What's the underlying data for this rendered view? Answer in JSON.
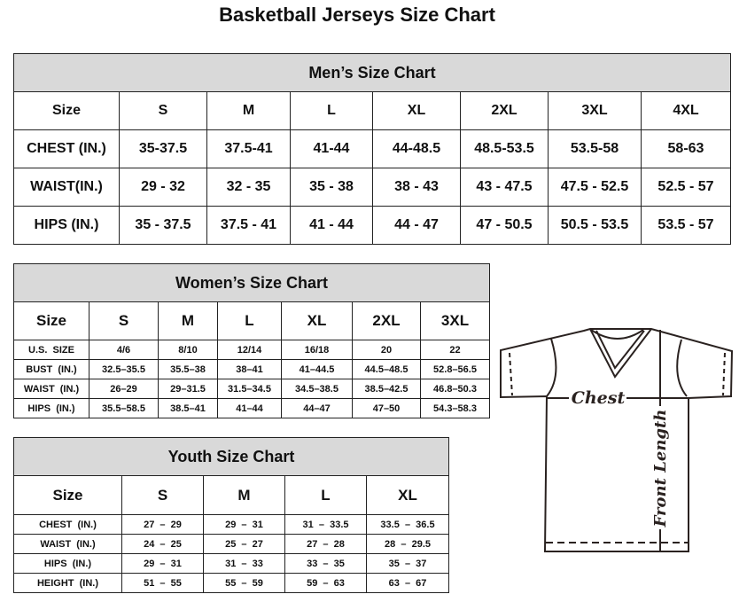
{
  "title": "Basketball Jerseys Size Chart",
  "men": {
    "heading": "Men’s Size Chart",
    "rows": [
      [
        "Size",
        "S",
        "M",
        "L",
        "XL",
        "2XL",
        "3XL",
        "4XL"
      ],
      [
        "CHEST (IN.)",
        "35-37.5",
        "37.5-41",
        "41-44",
        "44-48.5",
        "48.5-53.5",
        "53.5-58",
        "58-63"
      ],
      [
        "WAIST(IN.)",
        "29 - 32",
        "32 - 35",
        "35 - 38",
        "38 - 43",
        "43 - 47.5",
        "47.5 - 52.5",
        "52.5 - 57"
      ],
      [
        "HIPS (IN.)",
        "35 - 37.5",
        "37.5 - 41",
        "41 - 44",
        "44 - 47",
        "47 - 50.5",
        "50.5 - 53.5",
        "53.5 - 57"
      ]
    ]
  },
  "women": {
    "heading": "Women’s Size Chart",
    "rows": [
      [
        "Size",
        "S",
        "M",
        "L",
        "XL",
        "2XL",
        "3XL"
      ],
      [
        "U.S.  SIZE",
        "4/6",
        "8/10",
        "12/14",
        "16/18",
        "20",
        "22"
      ],
      [
        "BUST  (IN.)",
        "32.5–35.5",
        "35.5–38",
        "38–41",
        "41–44.5",
        "44.5–48.5",
        "52.8–56.5"
      ],
      [
        "WAIST  (IN.)",
        "26–29",
        "29–31.5",
        "31.5–34.5",
        "34.5–38.5",
        "38.5–42.5",
        "46.8–50.3"
      ],
      [
        "HIPS  (IN.)",
        "35.5–58.5",
        "38.5–41",
        "41–44",
        "44–47",
        "47–50",
        "54.3–58.3"
      ]
    ]
  },
  "youth": {
    "heading": "Youth Size Chart",
    "rows": [
      [
        "Size",
        "S",
        "M",
        "L",
        "XL"
      ],
      [
        "CHEST  (IN.)",
        "27  –  29",
        "29  –  31",
        "31  –  33.5",
        "33.5  –  36.5"
      ],
      [
        "WAIST  (IN.)",
        "24  –  25",
        "25  –  27",
        "27  –  28",
        "28  –  29.5"
      ],
      [
        "HIPS  (IN.)",
        "29  –  31",
        "31  –  33",
        "33  –  35",
        "35  –  37"
      ],
      [
        "HEIGHT  (IN.)",
        "51  –  55",
        "55  –  59",
        "59  –  63",
        "63  –  67"
      ]
    ]
  },
  "diagram": {
    "chest_label": "Chest",
    "length_label": "Front Length"
  }
}
